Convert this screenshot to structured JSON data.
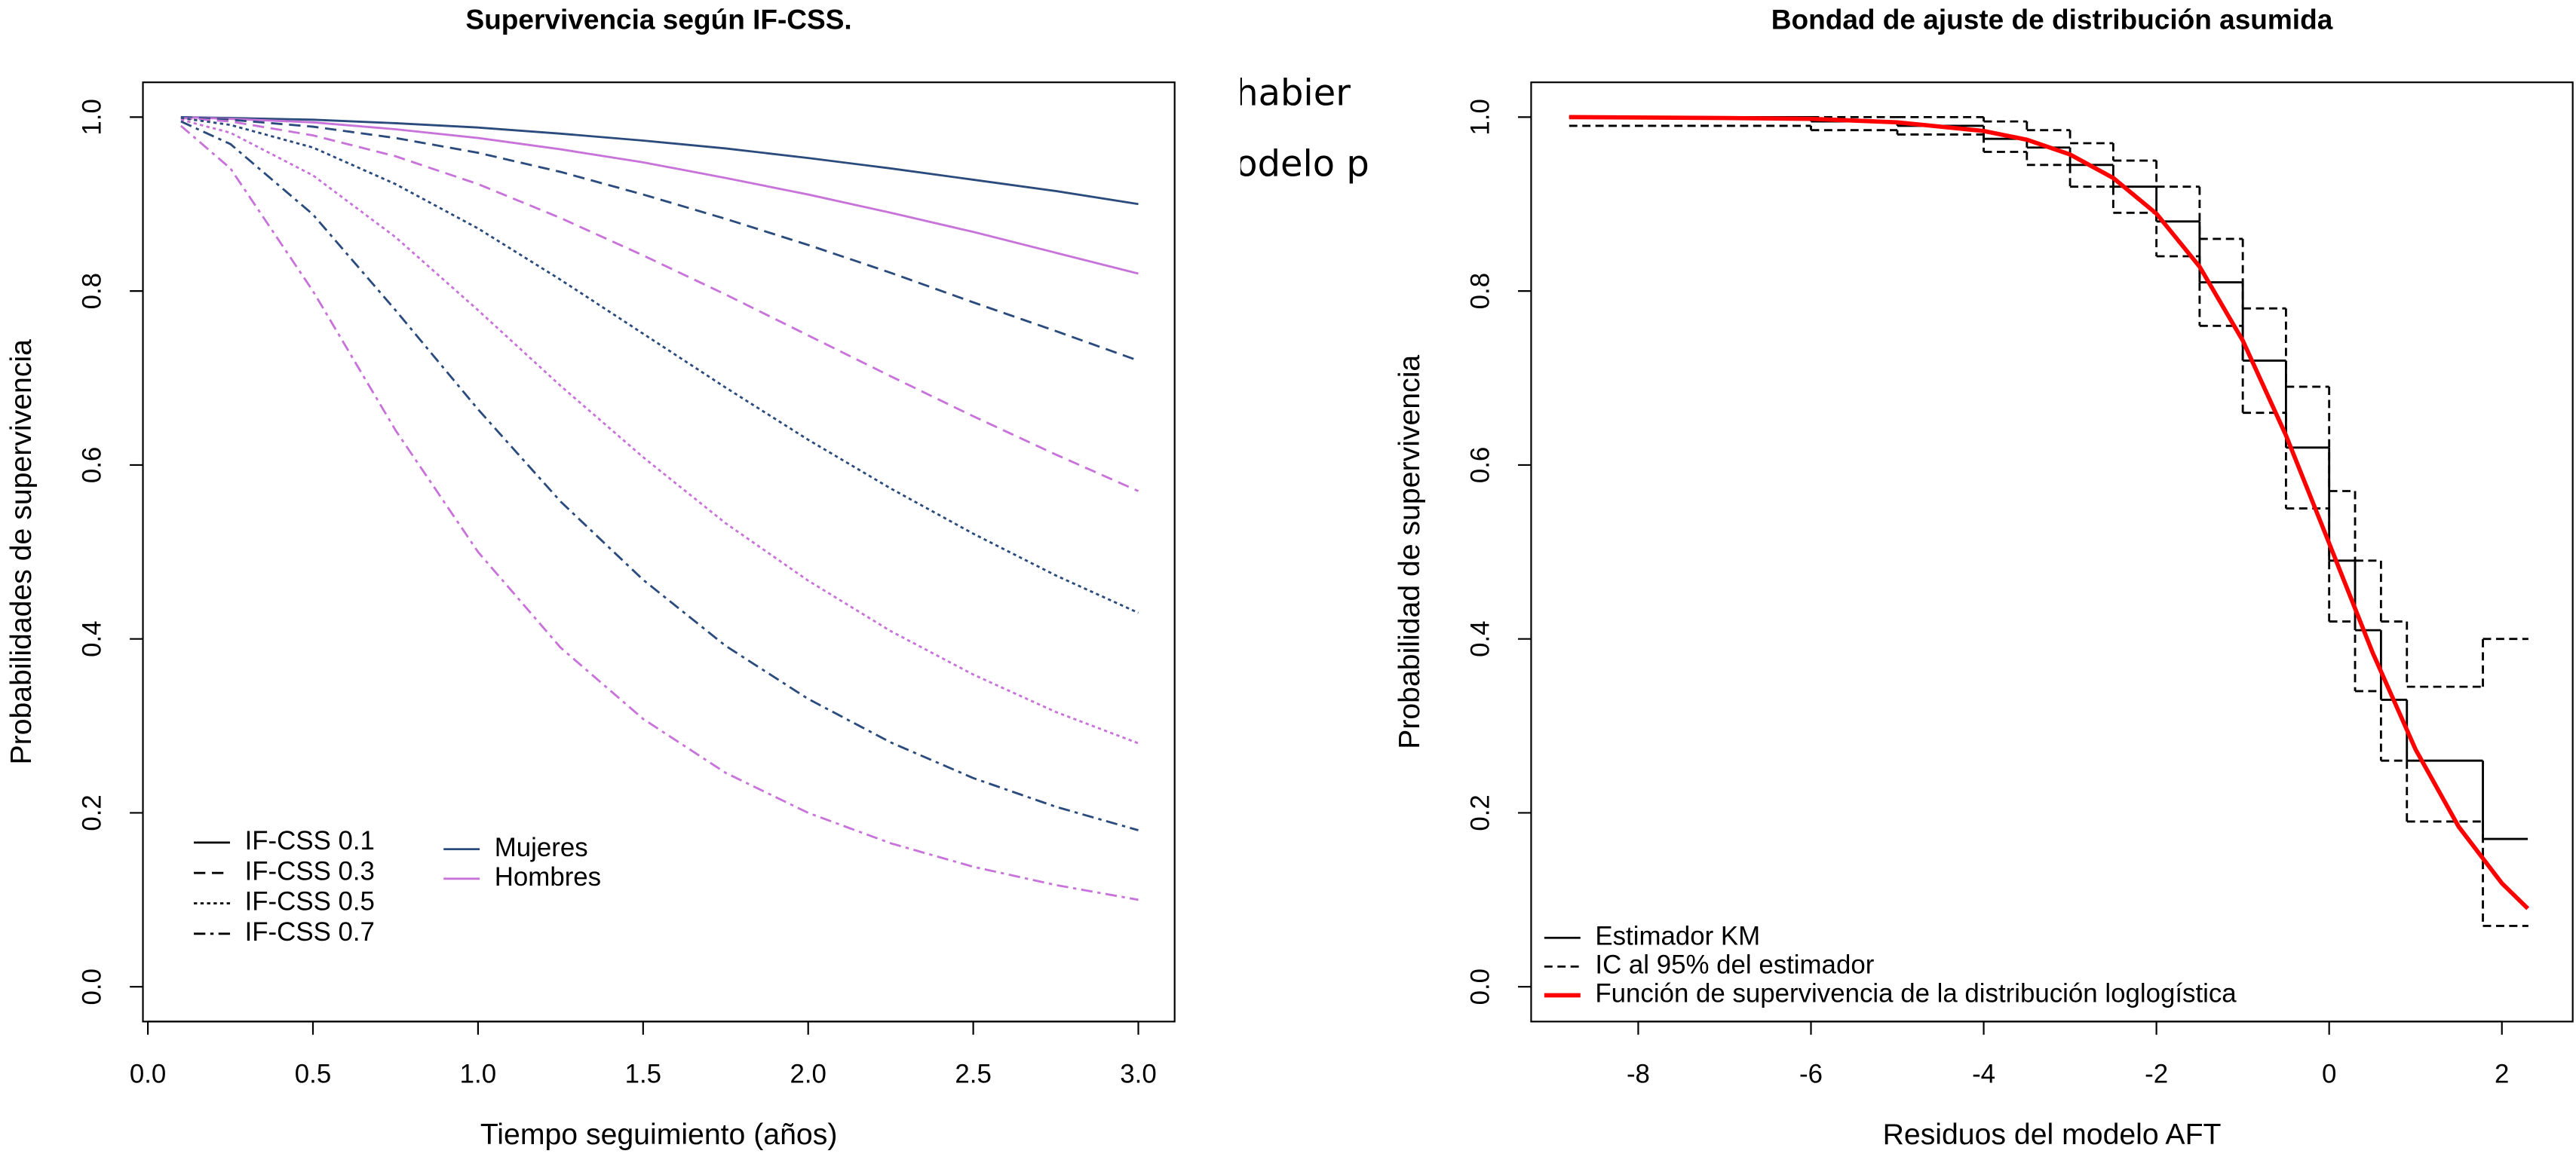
{
  "background_fragments": [
    "habier",
    "odelo p"
  ],
  "chart_data": [
    {
      "type": "line",
      "title": "Supervivencia según IF-CSS.",
      "xlabel": "Tiempo seguimiento (años)",
      "ylabel": "Probabilidades de supervivencia",
      "xlim": [
        -0.015,
        3.11
      ],
      "ylim": [
        -0.04,
        1.04
      ],
      "xticks": [
        {
          "value": 0,
          "label": "0.0"
        },
        0.5,
        {
          "value": 1,
          "label": "1.0"
        },
        1.5,
        {
          "value": 2,
          "label": "2.0"
        },
        2.5,
        {
          "value": 3,
          "label": "3.0"
        }
      ],
      "yticks": [
        {
          "value": 0,
          "label": "0.0"
        },
        0.2,
        0.4,
        0.6,
        0.8,
        {
          "value": 1,
          "label": "1.0"
        }
      ],
      "legend_linetypes": [
        {
          "label": "IF-CSS 0.1",
          "dash": "none"
        },
        {
          "label": "IF-CSS 0.3",
          "dash": "7 4"
        },
        {
          "label": "IF-CSS 0.5",
          "dash": "2 2"
        },
        {
          "label": "IF-CSS 0.7",
          "dash": "7 3 2 3"
        }
      ],
      "legend_groups": [
        {
          "label": "Mujeres",
          "color": "#2A4B7C"
        },
        {
          "label": "Hombres",
          "color": "#C873D9"
        }
      ],
      "x": [
        0.1,
        0.25,
        0.5,
        0.75,
        1.0,
        1.25,
        1.5,
        1.75,
        2.0,
        2.25,
        2.5,
        2.75,
        3.0
      ],
      "series": [
        {
          "group": 0,
          "linetype": 0,
          "values": [
            1.0,
            0.999,
            0.997,
            0.993,
            0.988,
            0.981,
            0.973,
            0.964,
            0.953,
            0.941,
            0.928,
            0.915,
            0.9
          ]
        },
        {
          "group": 1,
          "linetype": 0,
          "values": [
            1.0,
            0.998,
            0.994,
            0.986,
            0.976,
            0.963,
            0.948,
            0.93,
            0.911,
            0.89,
            0.868,
            0.844,
            0.82
          ]
        },
        {
          "group": 0,
          "linetype": 1,
          "values": [
            1.0,
            0.997,
            0.989,
            0.976,
            0.959,
            0.937,
            0.911,
            0.883,
            0.853,
            0.821,
            0.787,
            0.754,
            0.72
          ]
        },
        {
          "group": 1,
          "linetype": 1,
          "values": [
            0.999,
            0.995,
            0.979,
            0.955,
            0.923,
            0.884,
            0.841,
            0.796,
            0.749,
            0.702,
            0.656,
            0.612,
            0.57
          ]
        },
        {
          "group": 0,
          "linetype": 2,
          "values": [
            0.999,
            0.991,
            0.965,
            0.923,
            0.872,
            0.813,
            0.751,
            0.689,
            0.629,
            0.573,
            0.521,
            0.473,
            0.43
          ]
        },
        {
          "group": 1,
          "linetype": 2,
          "values": [
            0.997,
            0.982,
            0.933,
            0.862,
            0.778,
            0.691,
            0.609,
            0.533,
            0.467,
            0.409,
            0.359,
            0.316,
            0.28
          ]
        },
        {
          "group": 0,
          "linetype": 3,
          "values": [
            0.995,
            0.969,
            0.888,
            0.778,
            0.664,
            0.558,
            0.468,
            0.392,
            0.331,
            0.281,
            0.24,
            0.207,
            0.18
          ]
        },
        {
          "group": 1,
          "linetype": 3,
          "values": [
            0.99,
            0.941,
            0.8,
            0.64,
            0.5,
            0.39,
            0.308,
            0.246,
            0.2,
            0.165,
            0.138,
            0.117,
            0.1
          ]
        }
      ]
    },
    {
      "type": "survival_fit",
      "title": "Bondad de ajuste de distribución asumida",
      "xlabel": "Residuos del modelo AFT",
      "ylabel": "Probabilidad de supervivencia",
      "xlim": [
        -9.24,
        2.82
      ],
      "ylim": [
        -0.04,
        1.04
      ],
      "xticks": [
        -8,
        -6,
        -4,
        -2,
        0,
        2
      ],
      "yticks": [
        {
          "value": 0,
          "label": "0.0"
        },
        0.2,
        0.4,
        0.6,
        0.8,
        {
          "value": 1,
          "label": "1.0"
        }
      ],
      "legend": [
        {
          "label": "Estimador KM",
          "color": "#000000",
          "dash": "none",
          "width": 1.3
        },
        {
          "label": "IC al 95% del estimador",
          "color": "#000000",
          "dash": "5 3",
          "width": 1.3
        },
        {
          "label": "Función de supervivencia de la distribución loglogística",
          "color": "#FF0000",
          "dash": "none",
          "width": 2.6
        }
      ],
      "km": {
        "x": [
          -8.8,
          -6,
          -5,
          -4,
          -3.5,
          -3,
          -2.5,
          -2,
          -1.5,
          -1,
          -0.5,
          0,
          0.3,
          0.6,
          0.9,
          1.78,
          2.3
        ],
        "values": [
          1.0,
          0.995,
          0.99,
          0.975,
          0.965,
          0.945,
          0.92,
          0.88,
          0.81,
          0.72,
          0.62,
          0.49,
          0.41,
          0.33,
          0.26,
          0.17,
          0.17
        ],
        "upper": [
          1.0,
          1.0,
          1.0,
          0.995,
          0.985,
          0.97,
          0.95,
          0.92,
          0.86,
          0.78,
          0.69,
          0.57,
          0.49,
          0.42,
          0.345,
          0.4,
          0.4
        ],
        "lower": [
          0.99,
          0.985,
          0.98,
          0.96,
          0.945,
          0.92,
          0.89,
          0.84,
          0.76,
          0.66,
          0.55,
          0.42,
          0.34,
          0.26,
          0.19,
          0.07,
          0.07
        ]
      },
      "fit": {
        "x": [
          -8.8,
          -7,
          -6,
          -5,
          -4,
          -3.5,
          -3,
          -2.5,
          -2,
          -1.5,
          -1,
          -0.5,
          0,
          0.5,
          1,
          1.5,
          2,
          2.3
        ],
        "values": [
          1.0,
          0.999,
          0.998,
          0.994,
          0.984,
          0.974,
          0.957,
          0.93,
          0.889,
          0.828,
          0.743,
          0.634,
          0.51,
          0.385,
          0.273,
          0.184,
          0.119,
          0.09
        ]
      }
    }
  ]
}
